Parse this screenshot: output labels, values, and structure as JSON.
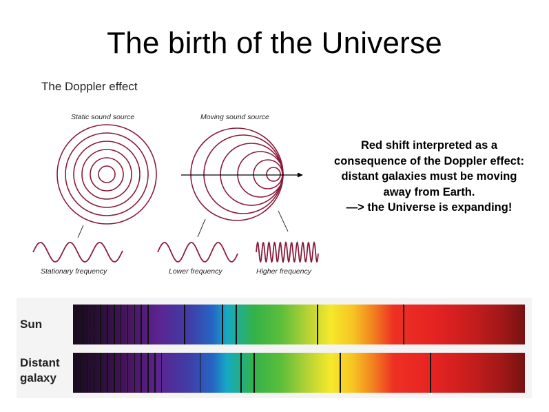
{
  "slide": {
    "title": "The birth of the Universe"
  },
  "doppler": {
    "heading": "The Doppler effect",
    "static_label": "Static sound source",
    "moving_label": "Moving sound source",
    "stationary_freq_label": "Stationary frequency",
    "lower_freq_label": "Lower frequency",
    "higher_freq_label": "Higher frequency"
  },
  "note": {
    "lines": [
      "Red shift interpreted as a",
      "consequence of the Doppler effect:",
      "distant galaxies must be moving",
      "away from Earth.",
      "—> the Universe is expanding!"
    ]
  },
  "spectra": {
    "sun_label": "Sun",
    "galaxy_label_line1": "Distant",
    "galaxy_label_line2": "galaxy",
    "sun_absorption_lines": [
      0.02,
      0.03,
      0.045,
      0.06,
      0.075,
      0.09,
      0.105,
      0.12,
      0.135,
      0.15,
      0.165,
      0.245,
      0.33,
      0.36,
      0.54,
      0.73
    ],
    "galaxy_absorption_lines": [
      0.015,
      0.03,
      0.045,
      0.06,
      0.075,
      0.09,
      0.105,
      0.12,
      0.135,
      0.15,
      0.165,
      0.18,
      0.195,
      0.28,
      0.37,
      0.4,
      0.59,
      0.79
    ],
    "colors": {
      "wave": "#8a1a3a",
      "arrow": "#000000"
    }
  }
}
